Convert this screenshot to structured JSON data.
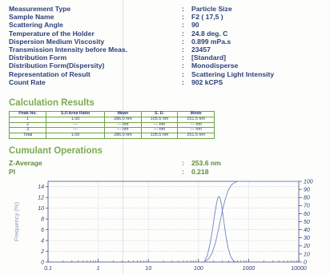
{
  "parameters": [
    {
      "label": "Measurement Type",
      "value": "Particle Size"
    },
    {
      "label": "Sample Name",
      "value": "F2 ( 17,5 )"
    },
    {
      "label": "Scattering Angle",
      "value": "90"
    },
    {
      "label": "Temperature of the Holder",
      "value": "24.8 deg. C"
    },
    {
      "label": "Dispersion Medium Viscosity",
      "value": "0.899 mPa.s"
    },
    {
      "label": "Transmission Intensity before Meas.",
      "value": "23457"
    },
    {
      "label": "Distribution Form",
      "value": "[Standard]"
    },
    {
      "label": "Distribution Form(Dispersity)",
      "value": "Monodisperse"
    },
    {
      "label": "Representation of Result",
      "value": "Scattering Light Intensity"
    },
    {
      "label": "Count Rate",
      "value": "902 kCPS"
    }
  ],
  "colon": ":",
  "calc_title": "Calculation Results",
  "calc_table": {
    "headers": [
      "Peak No.",
      "S.P.Area Ratio",
      "Mean",
      "S. D.",
      "Mode"
    ],
    "rows": [
      [
        "1",
        "1.00",
        "286.0 nm",
        "105.5 nm",
        "251.5 nm"
      ],
      [
        "2",
        "---",
        "--- nm",
        "--- nm",
        "--- nm"
      ],
      [
        "3",
        "---",
        "--- nm",
        "--- nm",
        "--- nm"
      ],
      [
        "Total",
        "1.00",
        "286.0 nm",
        "105.5 nm",
        "251.5 nm"
      ]
    ]
  },
  "cumulant_title": "Cumulant Operations",
  "cumulant": [
    {
      "label": "Z-Average",
      "value": "253.6 nm"
    },
    {
      "label": "PI",
      "value": "0.218"
    }
  ],
  "chart_data": {
    "type": "line",
    "ylabel": "Frequency (%)",
    "x_ticks": [
      "0.1",
      "1",
      "10",
      "100",
      "1000",
      "10000"
    ],
    "y_left_ticks": [
      "0",
      "2",
      "4",
      "6",
      "8",
      "10",
      "12",
      "14"
    ],
    "y_right_ticks": [
      "0",
      "10",
      "20",
      "30",
      "40",
      "50",
      "60",
      "70",
      "80",
      "90",
      "100"
    ],
    "xlim": [
      0.1,
      10000
    ],
    "ylim_left": [
      0,
      15
    ],
    "ylim_right": [
      0,
      100
    ],
    "x_scale": "log",
    "grid": true,
    "series": [
      {
        "axis": "left",
        "points": [
          [
            130,
            0
          ],
          [
            150,
            1.2
          ],
          [
            170,
            3.4
          ],
          [
            190,
            6.0
          ],
          [
            210,
            8.8
          ],
          [
            230,
            11.0
          ],
          [
            245,
            12.0
          ],
          [
            260,
            12.2
          ],
          [
            275,
            11.6
          ],
          [
            295,
            10.0
          ],
          [
            320,
            7.6
          ],
          [
            350,
            5.0
          ],
          [
            390,
            2.6
          ],
          [
            440,
            1.0
          ],
          [
            500,
            0.2
          ],
          [
            560,
            0
          ]
        ]
      },
      {
        "axis": "right",
        "points": [
          [
            130,
            0
          ],
          [
            160,
            4
          ],
          [
            190,
            12
          ],
          [
            220,
            25
          ],
          [
            250,
            40
          ],
          [
            280,
            55
          ],
          [
            310,
            68
          ],
          [
            350,
            80
          ],
          [
            400,
            90
          ],
          [
            460,
            96
          ],
          [
            540,
            99
          ],
          [
            620,
            100
          ],
          [
            10000,
            100
          ]
        ]
      }
    ],
    "colors": {
      "curve": "#6f86c8",
      "grid": "#b9bfd0",
      "axis": "#2c3f7a"
    }
  }
}
